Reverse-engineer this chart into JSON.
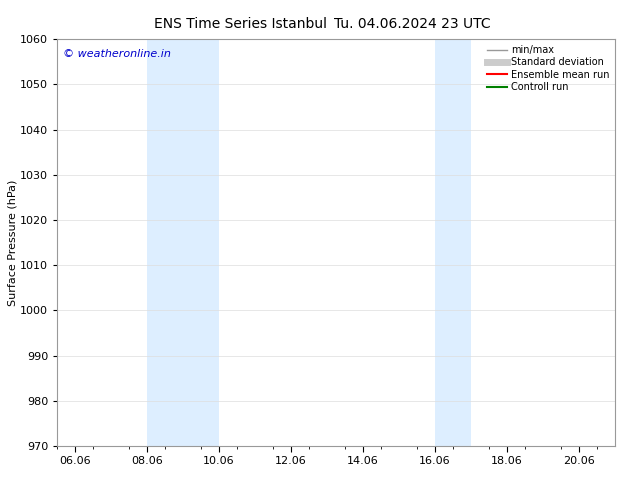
{
  "title": "ENS Time Series Istanbul",
  "title2": "Tu. 04.06.2024 23 UTC",
  "ylabel": "Surface Pressure (hPa)",
  "ylim": [
    970,
    1060
  ],
  "yticks": [
    970,
    980,
    990,
    1000,
    1010,
    1020,
    1030,
    1040,
    1050,
    1060
  ],
  "xlim_start": 5.5,
  "xlim_end": 21.0,
  "xtick_positions": [
    6,
    8,
    10,
    12,
    14,
    16,
    18,
    20
  ],
  "xtick_labels": [
    "06.06",
    "08.06",
    "10.06",
    "12.06",
    "14.06",
    "16.06",
    "18.06",
    "20.06"
  ],
  "shaded_bands": [
    {
      "xmin": 8.0,
      "xmax": 10.0
    },
    {
      "xmin": 16.0,
      "xmax": 17.0
    }
  ],
  "band_color": "#ddeeff",
  "watermark_text": "© weatheronline.in",
  "watermark_color": "#0000cc",
  "legend_labels": [
    "min/max",
    "Standard deviation",
    "Ensemble mean run",
    "Controll run"
  ],
  "legend_line_colors": [
    "#aaaaaa",
    "#cccccc",
    "#ff0000",
    "#008000"
  ],
  "background_color": "#ffffff",
  "grid_color": "#dddddd",
  "title_fontsize": 10,
  "axis_label_fontsize": 8,
  "tick_fontsize": 8,
  "watermark_fontsize": 8,
  "legend_fontsize": 7
}
